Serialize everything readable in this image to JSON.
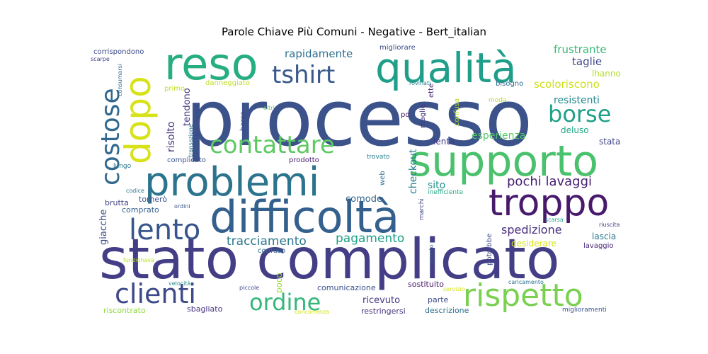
{
  "chart_data": {
    "type": "wordcloud",
    "title": "Parole Chiave Più Comuni - Negative - Bert_italian",
    "words": [
      {
        "text": "processo",
        "weight": 100,
        "color": "#3b528b"
      },
      {
        "text": "stato complicato",
        "weight": 90,
        "color": "#433e85"
      },
      {
        "text": "difficoltà",
        "weight": 70,
        "color": "#34608d"
      },
      {
        "text": "supporto",
        "weight": 66,
        "color": "#4ac16d"
      },
      {
        "text": "qualità",
        "weight": 64,
        "color": "#1f9e89"
      },
      {
        "text": "reso",
        "weight": 62,
        "color": "#26ad81"
      },
      {
        "text": "problemi",
        "weight": 60,
        "color": "#2c738e"
      },
      {
        "text": "troppo",
        "weight": 55,
        "color": "#481a6c"
      },
      {
        "text": "dopo",
        "weight": 52,
        "color": "#d8e219"
      },
      {
        "text": "rispetto",
        "weight": 46,
        "color": "#7ad151"
      },
      {
        "text": "lento",
        "weight": 42,
        "color": "#39568c"
      },
      {
        "text": "clienti",
        "weight": 40,
        "color": "#3e4989"
      },
      {
        "text": "costose",
        "weight": 38,
        "color": "#31688e"
      },
      {
        "text": "tshirt",
        "weight": 36,
        "color": "#38598c"
      },
      {
        "text": "contattare",
        "weight": 36,
        "color": "#5ec962"
      },
      {
        "text": "ordine",
        "weight": 34,
        "color": "#35b779"
      },
      {
        "text": "borse",
        "weight": 32,
        "color": "#1fa088"
      },
      {
        "text": "pochi lavaggi",
        "weight": 20,
        "color": "#482173"
      },
      {
        "text": "tracciamento",
        "weight": 19,
        "color": "#2a788e"
      },
      {
        "text": "pagamento",
        "weight": 19,
        "color": "#1fa188"
      },
      {
        "text": "spedizione",
        "weight": 18,
        "color": "#472d7b"
      },
      {
        "text": "rapidamente",
        "weight": 17,
        "color": "#2d708e"
      },
      {
        "text": "frustrante",
        "weight": 17,
        "color": "#37b878"
      },
      {
        "text": "scoloriscono",
        "weight": 17,
        "color": "#d0e11c"
      },
      {
        "text": "resistenti",
        "weight": 16,
        "color": "#238a8d"
      },
      {
        "text": "taglie",
        "weight": 16,
        "color": "#3f4889"
      },
      {
        "text": "esperienza",
        "weight": 15,
        "color": "#55c667"
      },
      {
        "text": "comode",
        "weight": 15,
        "color": "#33628d"
      },
      {
        "text": "ricevuto",
        "weight": 14,
        "color": "#443a83"
      },
      {
        "text": "checkout",
        "weight": 15,
        "color": "#287d8e"
      },
      {
        "text": "risolto",
        "weight": 15,
        "color": "#46307e"
      },
      {
        "text": "tendono",
        "weight": 14,
        "color": "#453882"
      },
      {
        "text": "giacche",
        "weight": 14,
        "color": "#3d4d8a"
      },
      {
        "text": "sito",
        "weight": 14,
        "color": "#21918c"
      },
      {
        "text": "poco",
        "weight": 13,
        "color": "#a0da39"
      },
      {
        "text": "lhanno",
        "weight": 12,
        "color": "#b5de2b"
      },
      {
        "text": "lenta",
        "weight": 12,
        "color": "#433e85"
      },
      {
        "text": "lascia",
        "weight": 12,
        "color": "#2a768e"
      },
      {
        "text": "desiderare",
        "weight": 12,
        "color": "#d8e219"
      },
      {
        "text": "deluso",
        "weight": 12,
        "color": "#22a785"
      },
      {
        "text": "stata",
        "weight": 12,
        "color": "#414487"
      },
      {
        "text": "tornerò",
        "weight": 12,
        "color": "#3b518b"
      },
      {
        "text": "brutta",
        "weight": 12,
        "color": "#424186"
      },
      {
        "text": "comprato",
        "weight": 12,
        "color": "#355f8d"
      },
      {
        "text": "confuso",
        "weight": 11,
        "color": "#2f6c8e"
      },
      {
        "text": "comunicazione",
        "weight": 11,
        "color": "#3c4f8a"
      },
      {
        "text": "sostituito",
        "weight": 11,
        "color": "#481769"
      },
      {
        "text": "parte",
        "weight": 11,
        "color": "#3e4a89"
      },
      {
        "text": "restringersi",
        "weight": 11,
        "color": "#46327e"
      },
      {
        "text": "descrizione",
        "weight": 11,
        "color": "#2d718e"
      },
      {
        "text": "sbagliato",
        "weight": 11,
        "color": "#46307e"
      },
      {
        "text": "riscontrato",
        "weight": 11,
        "color": "#90d743"
      },
      {
        "text": "complicato",
        "weight": 10,
        "color": "#3a548c"
      },
      {
        "text": "prodotto",
        "weight": 10,
        "color": "#481c6e"
      },
      {
        "text": "corrispondono",
        "weight": 10,
        "color": "#3d4d8a"
      },
      {
        "text": "migliorare",
        "weight": 10,
        "color": "#3e4a89"
      },
      {
        "text": "bisogno",
        "weight": 10,
        "color": "#2f6c8e"
      },
      {
        "text": "danneggiato",
        "weight": 10,
        "color": "#bddf26"
      },
      {
        "text": "primo",
        "weight": 10,
        "color": "#c8e020"
      },
      {
        "text": "deludente",
        "weight": 10,
        "color": "#3e4a89"
      },
      {
        "text": "borsa",
        "weight": 10,
        "color": "#3e4989"
      },
      {
        "text": "maglie",
        "weight": 10,
        "color": "#46327e"
      },
      {
        "text": "ette",
        "weight": 10,
        "color": "#482979"
      },
      {
        "text": "po",
        "weight": 10,
        "color": "#481769"
      },
      {
        "text": "confusa",
        "weight": 10,
        "color": "#b5de2b"
      },
      {
        "text": "moda",
        "weight": 9,
        "color": "#b5de2b"
      },
      {
        "text": "potrebbe",
        "weight": 10,
        "color": "#3e4989"
      },
      {
        "text": "lavaggio",
        "weight": 10,
        "color": "#482576"
      },
      {
        "text": "web",
        "weight": 9,
        "color": "#2d708e"
      },
      {
        "text": "lungo",
        "weight": 9,
        "color": "#2a768e"
      },
      {
        "text": "trovato",
        "weight": 9,
        "color": "#26828e"
      },
      {
        "text": "codice",
        "weight": 8,
        "color": "#2c738e"
      },
      {
        "text": "ordini",
        "weight": 8,
        "color": "#3b528b"
      },
      {
        "text": "inefficiente",
        "weight": 8,
        "color": "#22a785"
      },
      {
        "text": "marchi",
        "weight": 8,
        "color": "#404588"
      },
      {
        "text": "sconto",
        "weight": 8,
        "color": "#355f8d"
      },
      {
        "text": "scarpe",
        "weight": 8,
        "color": "#414487"
      },
      {
        "text": "consumarsi",
        "weight": 8,
        "color": "#2f6c8e"
      },
      {
        "text": "transazione",
        "weight": 8,
        "color": "#2c728e"
      },
      {
        "text": "rovinati",
        "weight": 8,
        "color": "#26828e"
      },
      {
        "text": "altri",
        "weight": 8,
        "color": "#6ccd5a"
      },
      {
        "text": "riuscita",
        "weight": 8,
        "color": "#443983"
      },
      {
        "text": "scarsa",
        "weight": 8,
        "color": "#20a486"
      },
      {
        "text": "funzionava",
        "weight": 7,
        "color": "#b5de2b"
      },
      {
        "text": "velocità",
        "weight": 8,
        "color": "#238a8d"
      },
      {
        "text": "piccole",
        "weight": 8,
        "color": "#3e4989"
      },
      {
        "text": "servizio",
        "weight": 7,
        "color": "#d8e219"
      },
      {
        "text": "caricamento",
        "weight": 7,
        "color": "#2c728e"
      },
      {
        "text": "miglioramenti",
        "weight": 8,
        "color": "#3b528b"
      },
      {
        "text": "concorrenza",
        "weight": 7,
        "color": "#d2e21b"
      }
    ]
  }
}
